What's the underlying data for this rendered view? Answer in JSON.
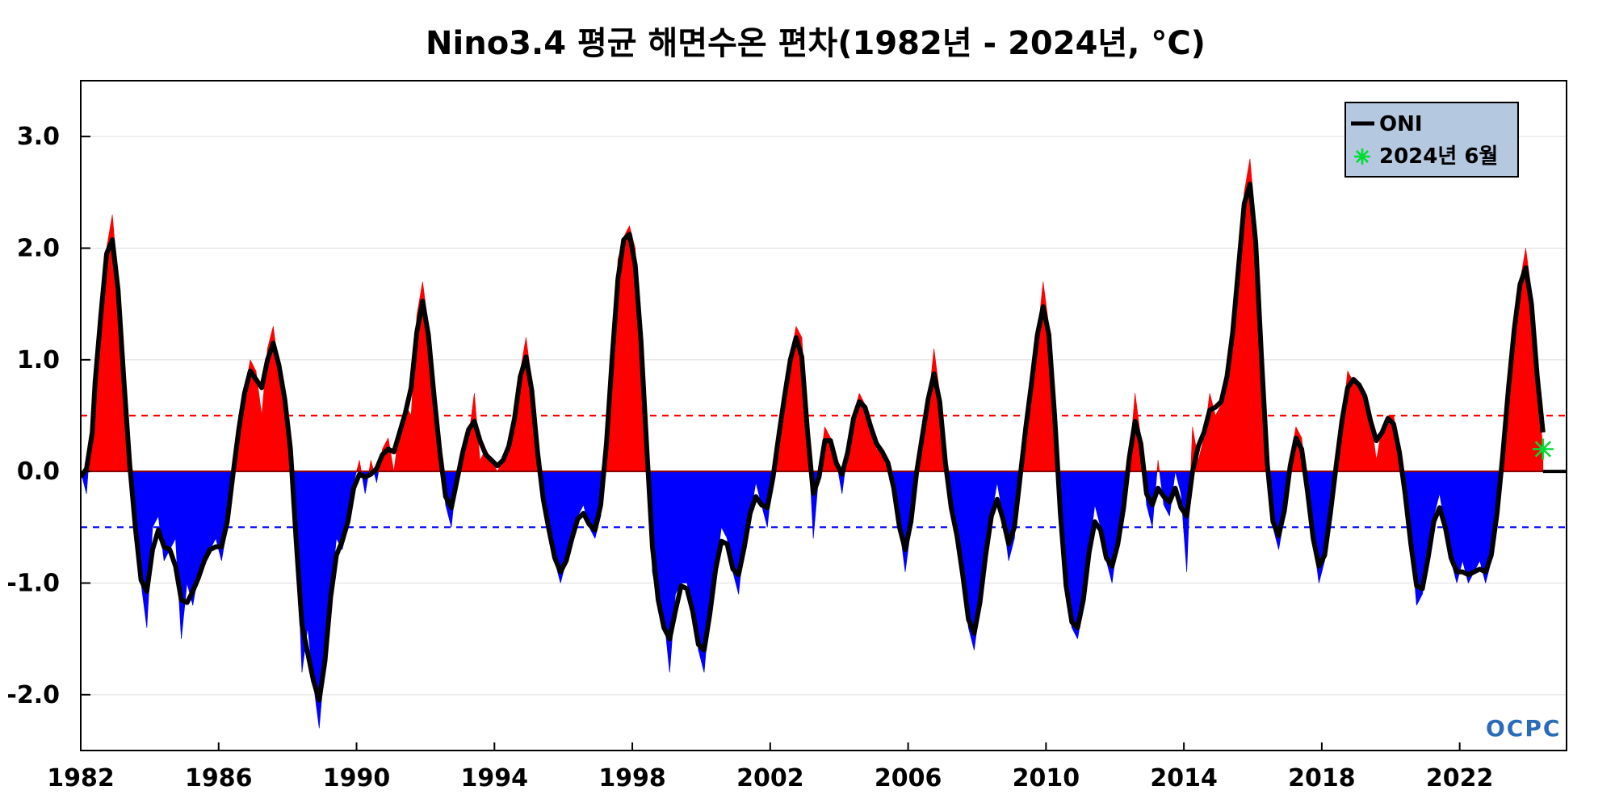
{
  "title": "Nino3.4 평균 해면수온 편차(1982년 - 2024년, °C)",
  "legend": {
    "oni_label": "ONI",
    "marker_label": "2024년 6월"
  },
  "logo": "OCPC",
  "chart_data": {
    "type": "area",
    "title": "Nino3.4 평균 해면수온 편차(1982년 - 2024년, °C)",
    "xlabel": "",
    "ylabel": "",
    "xlim": [
      1982.0,
      2025.1
    ],
    "ylim": [
      -2.5,
      3.5
    ],
    "x_ticks": [
      1982,
      1986,
      1990,
      1994,
      1998,
      2002,
      2006,
      2010,
      2014,
      2018,
      2022
    ],
    "x_tick_labels": [
      "1982",
      "1986",
      "1990",
      "1994",
      "1998",
      "2002",
      "2006",
      "2010",
      "2014",
      "2018",
      "2022"
    ],
    "y_ticks": [
      -2.0,
      -1.0,
      0.0,
      1.0,
      2.0,
      3.0
    ],
    "y_tick_labels": [
      "-2.0",
      "-1.0",
      "0.0",
      "1.0",
      "2.0",
      "3.0"
    ],
    "grid": true,
    "legend_position": "top-right",
    "thresholds": [
      {
        "value": 0.5,
        "color": "#ff0000",
        "style": "dashed"
      },
      {
        "value": -0.5,
        "color": "#0000ff",
        "style": "dashed"
      }
    ],
    "fill_colors": {
      "positive": "#ff0000",
      "negative": "#0000ff"
    },
    "series": [
      {
        "name": "ONI",
        "color": "#000000",
        "points": [
          [
            "1982-01",
            0.0
          ],
          [
            "1982-03",
            -0.2
          ],
          [
            "1982-05",
            0.5
          ],
          [
            "1982-06",
            0.6
          ],
          [
            "1982-08",
            1.5
          ],
          [
            "1982-10",
            2.0
          ],
          [
            "1982-12",
            2.3
          ],
          [
            "1983-02",
            1.7
          ],
          [
            "1983-04",
            0.8
          ],
          [
            "1983-06",
            0.0
          ],
          [
            "1983-08",
            -0.5
          ],
          [
            "1983-10",
            -1.0
          ],
          [
            "1983-12",
            -1.4
          ],
          [
            "1984-02",
            -0.5
          ],
          [
            "1984-04",
            -0.4
          ],
          [
            "1984-06",
            -0.8
          ],
          [
            "1984-08",
            -0.7
          ],
          [
            "1984-10",
            -0.6
          ],
          [
            "1984-12",
            -1.5
          ],
          [
            "1985-02",
            -1.0
          ],
          [
            "1985-04",
            -1.2
          ],
          [
            "1985-06",
            -0.9
          ],
          [
            "1985-08",
            -0.8
          ],
          [
            "1985-10",
            -0.7
          ],
          [
            "1985-12",
            -0.6
          ],
          [
            "1986-02",
            -0.8
          ],
          [
            "1986-04",
            -0.5
          ],
          [
            "1986-06",
            0.0
          ],
          [
            "1986-08",
            0.4
          ],
          [
            "1986-10",
            0.7
          ],
          [
            "1986-12",
            1.0
          ],
          [
            "1987-02",
            0.9
          ],
          [
            "1987-04",
            0.5
          ],
          [
            "1987-06",
            1.1
          ],
          [
            "1987-08",
            1.3
          ],
          [
            "1987-10",
            0.9
          ],
          [
            "1987-12",
            0.7
          ],
          [
            "1988-02",
            0.3
          ],
          [
            "1988-04",
            -0.5
          ],
          [
            "1988-06",
            -1.8
          ],
          [
            "1988-08",
            -1.4
          ],
          [
            "1988-10",
            -1.9
          ],
          [
            "1988-12",
            -2.3
          ],
          [
            "1989-02",
            -1.7
          ],
          [
            "1989-04",
            -1.1
          ],
          [
            "1989-06",
            -0.6
          ],
          [
            "1989-08",
            -0.7
          ],
          [
            "1989-10",
            -0.5
          ],
          [
            "1989-12",
            -0.1
          ],
          [
            "1990-02",
            0.1
          ],
          [
            "1990-04",
            -0.2
          ],
          [
            "1990-06",
            0.1
          ],
          [
            "1990-08",
            -0.1
          ],
          [
            "1990-10",
            0.2
          ],
          [
            "1990-12",
            0.3
          ],
          [
            "1991-02",
            0.0
          ],
          [
            "1991-04",
            0.4
          ],
          [
            "1991-06",
            0.6
          ],
          [
            "1991-08",
            0.5
          ],
          [
            "1991-10",
            1.4
          ],
          [
            "1991-12",
            1.7
          ],
          [
            "1992-02",
            1.3
          ],
          [
            "1992-04",
            0.6
          ],
          [
            "1992-06",
            0.2
          ],
          [
            "1992-08",
            -0.3
          ],
          [
            "1992-10",
            -0.5
          ],
          [
            "1992-12",
            0.0
          ],
          [
            "1993-02",
            0.2
          ],
          [
            "1993-04",
            0.3
          ],
          [
            "1993-06",
            0.7
          ],
          [
            "1993-08",
            0.1
          ],
          [
            "1993-10",
            0.2
          ],
          [
            "1993-12",
            0.1
          ],
          [
            "1994-02",
            0.0
          ],
          [
            "1994-04",
            0.1
          ],
          [
            "1994-06",
            0.2
          ],
          [
            "1994-08",
            0.4
          ],
          [
            "1994-10",
            0.9
          ],
          [
            "1994-12",
            1.2
          ],
          [
            "1995-02",
            0.8
          ],
          [
            "1995-04",
            0.1
          ],
          [
            "1995-06",
            -0.3
          ],
          [
            "1995-08",
            -0.5
          ],
          [
            "1995-10",
            -0.8
          ],
          [
            "1995-12",
            -1.0
          ],
          [
            "1996-02",
            -0.8
          ],
          [
            "1996-04",
            -0.6
          ],
          [
            "1996-06",
            -0.4
          ],
          [
            "1996-08",
            -0.3
          ],
          [
            "1996-10",
            -0.5
          ],
          [
            "1996-12",
            -0.6
          ],
          [
            "1997-02",
            -0.4
          ],
          [
            "1997-04",
            0.2
          ],
          [
            "1997-06",
            1.0
          ],
          [
            "1997-08",
            1.9
          ],
          [
            "1997-10",
            2.1
          ],
          [
            "1997-12",
            2.2
          ],
          [
            "1998-02",
            2.0
          ],
          [
            "1998-04",
            1.2
          ],
          [
            "1998-06",
            0.3
          ],
          [
            "1998-08",
            -0.9
          ],
          [
            "1998-10",
            -1.2
          ],
          [
            "1998-12",
            -1.3
          ],
          [
            "1999-02",
            -1.8
          ],
          [
            "1999-04",
            -1.1
          ],
          [
            "1999-06",
            -1.0
          ],
          [
            "1999-08",
            -1.0
          ],
          [
            "1999-10",
            -1.2
          ],
          [
            "1999-12",
            -1.6
          ],
          [
            "2000-02",
            -1.8
          ],
          [
            "2000-04",
            -1.2
          ],
          [
            "2000-06",
            -0.9
          ],
          [
            "2000-08",
            -0.5
          ],
          [
            "2000-10",
            -0.6
          ],
          [
            "2000-12",
            -0.9
          ],
          [
            "2001-02",
            -1.1
          ],
          [
            "2001-04",
            -0.6
          ],
          [
            "2001-06",
            -0.4
          ],
          [
            "2001-08",
            -0.1
          ],
          [
            "2001-10",
            -0.3
          ],
          [
            "2001-12",
            -0.5
          ],
          [
            "2002-02",
            0.0
          ],
          [
            "2002-04",
            0.3
          ],
          [
            "2002-06",
            0.7
          ],
          [
            "2002-08",
            1.0
          ],
          [
            "2002-10",
            1.3
          ],
          [
            "2002-12",
            1.2
          ],
          [
            "2003-02",
            0.4
          ],
          [
            "2003-04",
            -0.6
          ],
          [
            "2003-06",
            0.0
          ],
          [
            "2003-08",
            0.4
          ],
          [
            "2003-10",
            0.3
          ],
          [
            "2003-12",
            0.1
          ],
          [
            "2004-02",
            -0.2
          ],
          [
            "2004-04",
            0.2
          ],
          [
            "2004-06",
            0.5
          ],
          [
            "2004-08",
            0.7
          ],
          [
            "2004-10",
            0.6
          ],
          [
            "2004-12",
            0.4
          ],
          [
            "2005-02",
            0.2
          ],
          [
            "2005-04",
            0.2
          ],
          [
            "2005-06",
            0.1
          ],
          [
            "2005-08",
            -0.1
          ],
          [
            "2005-10",
            -0.5
          ],
          [
            "2005-12",
            -0.9
          ],
          [
            "2006-02",
            -0.5
          ],
          [
            "2006-04",
            0.1
          ],
          [
            "2006-06",
            0.3
          ],
          [
            "2006-08",
            0.6
          ],
          [
            "2006-10",
            1.1
          ],
          [
            "2006-12",
            0.7
          ],
          [
            "2007-02",
            0.0
          ],
          [
            "2007-04",
            -0.4
          ],
          [
            "2007-06",
            -0.5
          ],
          [
            "2007-08",
            -0.9
          ],
          [
            "2007-10",
            -1.4
          ],
          [
            "2007-12",
            -1.6
          ],
          [
            "2008-02",
            -1.2
          ],
          [
            "2008-04",
            -0.7
          ],
          [
            "2008-06",
            -0.4
          ],
          [
            "2008-08",
            -0.1
          ],
          [
            "2008-10",
            -0.4
          ],
          [
            "2008-12",
            -0.8
          ],
          [
            "2009-02",
            -0.6
          ],
          [
            "2009-04",
            0.0
          ],
          [
            "2009-06",
            0.4
          ],
          [
            "2009-08",
            0.8
          ],
          [
            "2009-10",
            1.2
          ],
          [
            "2009-12",
            1.7
          ],
          [
            "2010-02",
            1.3
          ],
          [
            "2010-04",
            0.6
          ],
          [
            "2010-06",
            -0.5
          ],
          [
            "2010-08",
            -1.1
          ],
          [
            "2010-10",
            -1.4
          ],
          [
            "2010-12",
            -1.5
          ],
          [
            "2011-02",
            -1.2
          ],
          [
            "2011-04",
            -0.7
          ],
          [
            "2011-06",
            -0.3
          ],
          [
            "2011-08",
            -0.5
          ],
          [
            "2011-10",
            -0.8
          ],
          [
            "2011-12",
            -1.0
          ],
          [
            "2012-02",
            -0.6
          ],
          [
            "2012-04",
            -0.4
          ],
          [
            "2012-06",
            0.1
          ],
          [
            "2012-08",
            0.7
          ],
          [
            "2012-10",
            0.3
          ],
          [
            "2012-12",
            -0.3
          ],
          [
            "2013-02",
            -0.5
          ],
          [
            "2013-04",
            0.1
          ],
          [
            "2013-06",
            -0.3
          ],
          [
            "2013-08",
            -0.4
          ],
          [
            "2013-10",
            0.0
          ],
          [
            "2013-12",
            -0.2
          ],
          [
            "2014-02",
            -0.9
          ],
          [
            "2014-04",
            0.4
          ],
          [
            "2014-06",
            0.1
          ],
          [
            "2014-08",
            0.3
          ],
          [
            "2014-10",
            0.7
          ],
          [
            "2014-12",
            0.5
          ],
          [
            "2015-02",
            0.6
          ],
          [
            "2015-04",
            0.8
          ],
          [
            "2015-06",
            1.2
          ],
          [
            "2015-08",
            1.8
          ],
          [
            "2015-10",
            2.5
          ],
          [
            "2015-12",
            2.8
          ],
          [
            "2016-02",
            2.2
          ],
          [
            "2016-04",
            1.0
          ],
          [
            "2016-06",
            -0.1
          ],
          [
            "2016-08",
            -0.5
          ],
          [
            "2016-10",
            -0.7
          ],
          [
            "2016-12",
            -0.4
          ],
          [
            "2017-02",
            0.1
          ],
          [
            "2017-04",
            0.4
          ],
          [
            "2017-06",
            0.3
          ],
          [
            "2017-08",
            -0.2
          ],
          [
            "2017-10",
            -0.6
          ],
          [
            "2017-12",
            -1.0
          ],
          [
            "2018-02",
            -0.8
          ],
          [
            "2018-04",
            -0.4
          ],
          [
            "2018-06",
            0.1
          ],
          [
            "2018-08",
            0.4
          ],
          [
            "2018-10",
            0.9
          ],
          [
            "2018-12",
            0.8
          ],
          [
            "2019-02",
            0.8
          ],
          [
            "2019-04",
            0.7
          ],
          [
            "2019-06",
            0.5
          ],
          [
            "2019-08",
            0.1
          ],
          [
            "2019-10",
            0.4
          ],
          [
            "2019-12",
            0.5
          ],
          [
            "2020-02",
            0.5
          ],
          [
            "2020-04",
            0.2
          ],
          [
            "2020-06",
            -0.2
          ],
          [
            "2020-08",
            -0.6
          ],
          [
            "2020-10",
            -1.2
          ],
          [
            "2020-12",
            -1.1
          ],
          [
            "2021-02",
            -0.8
          ],
          [
            "2021-04",
            -0.4
          ],
          [
            "2021-06",
            -0.2
          ],
          [
            "2021-08",
            -0.5
          ],
          [
            "2021-10",
            -0.8
          ],
          [
            "2021-12",
            -1.0
          ],
          [
            "2022-02",
            -0.8
          ],
          [
            "2022-04",
            -1.0
          ],
          [
            "2022-06",
            -0.9
          ],
          [
            "2022-08",
            -0.8
          ],
          [
            "2022-10",
            -1.0
          ],
          [
            "2022-12",
            -0.8
          ],
          [
            "2023-02",
            -0.4
          ],
          [
            "2023-04",
            0.1
          ],
          [
            "2023-06",
            0.8
          ],
          [
            "2023-08",
            1.3
          ],
          [
            "2023-10",
            1.7
          ],
          [
            "2023-12",
            2.0
          ],
          [
            "2024-02",
            1.6
          ],
          [
            "2024-04",
            0.8
          ],
          [
            "2024-06",
            0.2
          ]
        ]
      }
    ],
    "marker": {
      "date": "2024-06",
      "value": 0.2,
      "color": "#00dd33"
    }
  }
}
